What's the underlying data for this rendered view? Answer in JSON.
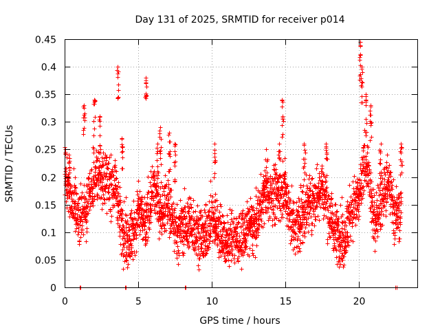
{
  "chart_data": {
    "type": "scatter",
    "title": "Day 131 of 2025, SRMTID for receiver p014",
    "xlabel": "GPS time / hours",
    "ylabel": "SRMTID / TECUs",
    "xlim": [
      0,
      24
    ],
    "ylim": [
      0,
      0.45
    ],
    "xticks": [
      0,
      5,
      10,
      15,
      20
    ],
    "xtick_labels": [
      "0",
      "5",
      "10",
      "15",
      "20"
    ],
    "yticks": [
      0,
      0.05,
      0.1,
      0.15,
      0.2,
      0.25,
      0.3,
      0.35,
      0.4,
      0.45
    ],
    "ytick_labels": [
      "0",
      "0.05",
      "0.1",
      "0.15",
      "0.2",
      "0.25",
      "0.3",
      "0.35",
      "0.4",
      "0.45"
    ],
    "grid": true,
    "marker": "+",
    "color": "#ff0000",
    "series": [
      {
        "name": "SRMTID",
        "trend": [
          [
            0.0,
            0.19
          ],
          [
            0.5,
            0.16
          ],
          [
            1.0,
            0.12
          ],
          [
            1.5,
            0.15
          ],
          [
            2.0,
            0.2
          ],
          [
            2.5,
            0.2
          ],
          [
            3.0,
            0.19
          ],
          [
            3.5,
            0.18
          ],
          [
            3.8,
            0.12
          ],
          [
            4.2,
            0.09
          ],
          [
            4.7,
            0.1
          ],
          [
            5.0,
            0.14
          ],
          [
            5.5,
            0.11
          ],
          [
            6.0,
            0.18
          ],
          [
            6.5,
            0.14
          ],
          [
            7.0,
            0.15
          ],
          [
            7.5,
            0.1
          ],
          [
            8.0,
            0.11
          ],
          [
            8.5,
            0.12
          ],
          [
            9.0,
            0.1
          ],
          [
            9.5,
            0.09
          ],
          [
            10.0,
            0.13
          ],
          [
            10.5,
            0.11
          ],
          [
            11.0,
            0.08
          ],
          [
            11.5,
            0.09
          ],
          [
            12.0,
            0.09
          ],
          [
            12.5,
            0.11
          ],
          [
            13.0,
            0.11
          ],
          [
            13.5,
            0.17
          ],
          [
            14.0,
            0.17
          ],
          [
            14.5,
            0.17
          ],
          [
            15.0,
            0.18
          ],
          [
            15.5,
            0.11
          ],
          [
            16.0,
            0.12
          ],
          [
            16.5,
            0.15
          ],
          [
            17.0,
            0.16
          ],
          [
            17.5,
            0.19
          ],
          [
            18.0,
            0.13
          ],
          [
            18.5,
            0.1
          ],
          [
            19.0,
            0.09
          ],
          [
            19.5,
            0.14
          ],
          [
            20.0,
            0.16
          ],
          [
            20.5,
            0.24
          ],
          [
            21.0,
            0.12
          ],
          [
            21.5,
            0.15
          ],
          [
            22.0,
            0.19
          ],
          [
            22.5,
            0.13
          ],
          [
            22.9,
            0.14
          ]
        ],
        "spikes": [
          [
            0.05,
            0.25
          ],
          [
            0.3,
            0.24
          ],
          [
            1.3,
            0.33
          ],
          [
            2.0,
            0.34
          ],
          [
            2.4,
            0.31
          ],
          [
            3.6,
            0.4
          ],
          [
            3.9,
            0.27
          ],
          [
            5.5,
            0.38
          ],
          [
            6.3,
            0.26
          ],
          [
            6.5,
            0.29
          ],
          [
            7.1,
            0.28
          ],
          [
            7.5,
            0.26
          ],
          [
            10.2,
            0.26
          ],
          [
            13.7,
            0.25
          ],
          [
            14.6,
            0.26
          ],
          [
            14.8,
            0.34
          ],
          [
            16.3,
            0.26
          ],
          [
            17.8,
            0.26
          ],
          [
            20.1,
            0.445
          ],
          [
            20.2,
            0.4
          ],
          [
            20.5,
            0.35
          ],
          [
            20.8,
            0.33
          ],
          [
            21.5,
            0.26
          ],
          [
            22.9,
            0.26
          ]
        ],
        "zeros": [
          1.05,
          4.15,
          8.2,
          22.5,
          22.6
        ]
      }
    ]
  }
}
